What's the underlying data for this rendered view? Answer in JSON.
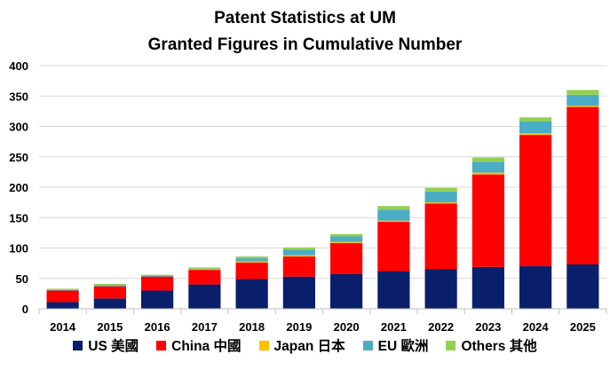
{
  "chart_data": {
    "type": "bar",
    "stacked": true,
    "title": "Patent Statistics at UM",
    "subtitle": "Granted Figures in Cumulative Number",
    "xlabel": "",
    "ylabel": "",
    "ylim": [
      0,
      400
    ],
    "yticks": [
      "0",
      "50",
      "100",
      "150",
      "200",
      "250",
      "300",
      "350",
      "400"
    ],
    "grid": true,
    "legend_position": "bottom",
    "categories": [
      "2014",
      "2015",
      "2016",
      "2017",
      "2018",
      "2019",
      "2020",
      "2021",
      "2022",
      "2023",
      "2024",
      "2025"
    ],
    "series": [
      {
        "name": "US 美國",
        "color": "#0a1f6b",
        "values": [
          11,
          17,
          30,
          40,
          49,
          53,
          57,
          62,
          65,
          69,
          70,
          73
        ]
      },
      {
        "name": "China 中國",
        "color": "#ff0000",
        "values": [
          19,
          20,
          23,
          24,
          27,
          33,
          51,
          81,
          108,
          152,
          216,
          259
        ]
      },
      {
        "name": "Japan 日本",
        "color": "#ffc000",
        "values": [
          0,
          0,
          0,
          1,
          2,
          2,
          2,
          2,
          2,
          3,
          3,
          2
        ]
      },
      {
        "name": "EU 歐洲",
        "color": "#4bacc6",
        "values": [
          1,
          2,
          1,
          1,
          5,
          9,
          9,
          18,
          18,
          18,
          19,
          18
        ]
      },
      {
        "name": "Others 其他",
        "color": "#92d050",
        "values": [
          2,
          2,
          2,
          2,
          3,
          4,
          4,
          6,
          6,
          7,
          7,
          8
        ]
      }
    ]
  }
}
